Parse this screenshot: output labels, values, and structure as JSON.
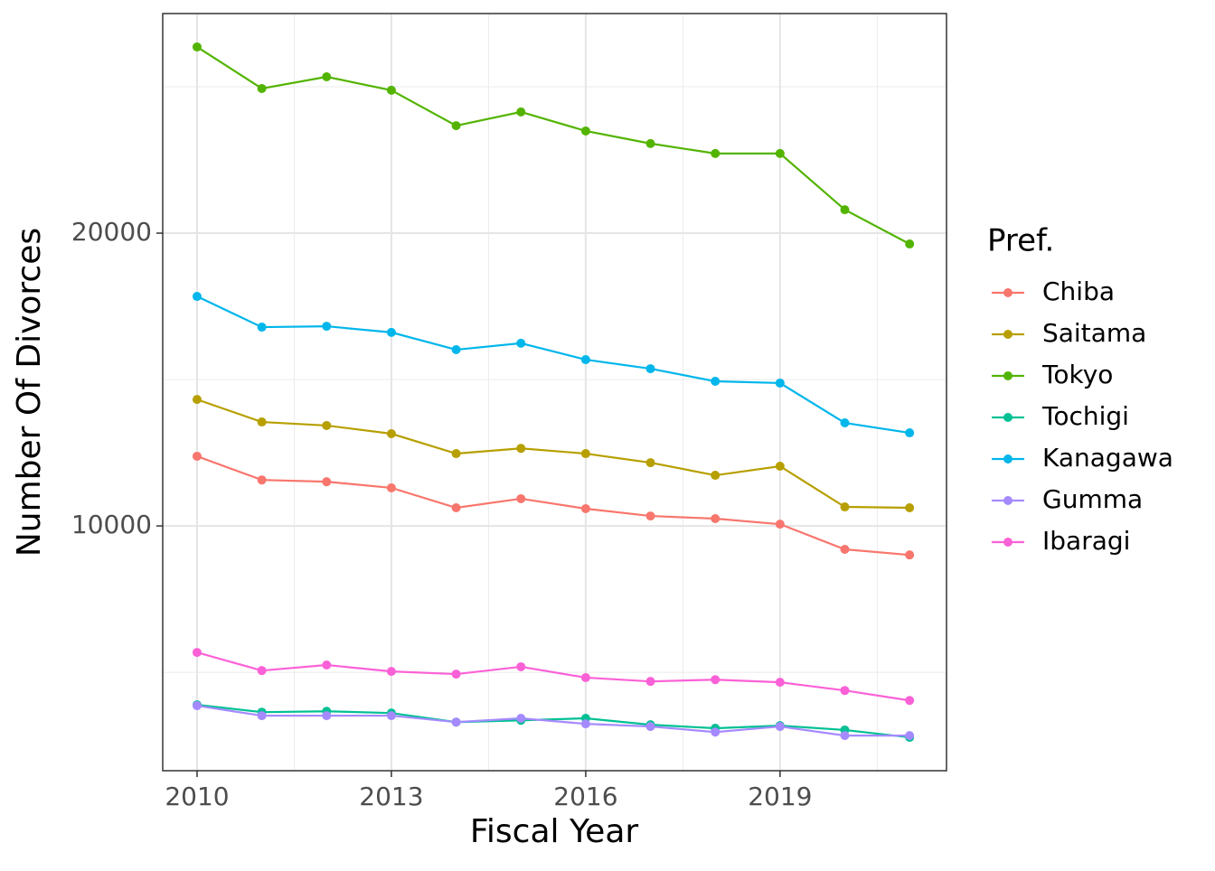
{
  "chart_data": {
    "type": "line",
    "x_label": "Fiscal Year",
    "y_label": "Number Of Divorces",
    "legend_title": "Pref.",
    "legend_position": "right",
    "grid": true,
    "xlim": [
      2009.47,
      2021.57
    ],
    "xticks": [
      2010,
      2013,
      2016,
      2019
    ],
    "ylim": [
      1640,
      27500
    ],
    "yticks": [
      10000,
      20000
    ],
    "x": [
      2010,
      2011,
      2012,
      2013,
      2014,
      2015,
      2016,
      2017,
      2018,
      2019,
      2020,
      2021
    ],
    "series": [
      {
        "name": "Chiba",
        "color": "#F8766D",
        "values": [
          12380,
          11570,
          11510,
          11300,
          10620,
          10930,
          10590,
          10340,
          10250,
          10060,
          9200,
          9010
        ]
      },
      {
        "name": "Saitama",
        "color": "#B79F00",
        "values": [
          14320,
          13550,
          13430,
          13150,
          12470,
          12650,
          12470,
          12160,
          11730,
          12040,
          10650,
          10620
        ]
      },
      {
        "name": "Tokyo",
        "color": "#53B400",
        "values": [
          26360,
          24940,
          25340,
          24880,
          23670,
          24140,
          23490,
          23060,
          22720,
          22720,
          20800,
          19630
        ]
      },
      {
        "name": "Tochigi",
        "color": "#00C094",
        "values": [
          3890,
          3640,
          3670,
          3610,
          3300,
          3360,
          3430,
          3210,
          3090,
          3180,
          3030,
          2780
        ]
      },
      {
        "name": "Kanagawa",
        "color": "#00B6EB",
        "values": [
          17840,
          16790,
          16820,
          16610,
          16020,
          16240,
          15680,
          15370,
          14940,
          14880,
          13520,
          13180
        ]
      },
      {
        "name": "Gumma",
        "color": "#A58AFF",
        "values": [
          3860,
          3520,
          3520,
          3520,
          3300,
          3430,
          3240,
          3150,
          2960,
          3150,
          2840,
          2840
        ]
      },
      {
        "name": "Ibaragi",
        "color": "#FB61D7",
        "values": [
          5680,
          5060,
          5250,
          5030,
          4940,
          5190,
          4820,
          4690,
          4750,
          4660,
          4380,
          4040
        ]
      }
    ]
  }
}
